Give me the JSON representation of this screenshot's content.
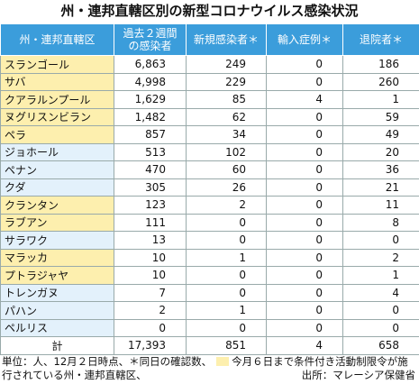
{
  "title": "州・連邦直轄区別の新型コロナウイルス感染状況",
  "table": {
    "header": [
      "州・連邦直轄区",
      [
        "過去２週間",
        "の感染者"
      ],
      "新規感染者＊",
      "輸入症例＊",
      "退院者＊"
    ],
    "rows": [
      {
        "cells": [
          "スランゴール",
          "6,863",
          "249",
          "0",
          "186"
        ],
        "restricted": true
      },
      {
        "cells": [
          "サバ",
          "4,998",
          "229",
          "0",
          "260"
        ],
        "restricted": true
      },
      {
        "cells": [
          "クアラルンプール",
          "1,629",
          "85",
          "4",
          "1"
        ],
        "restricted": true
      },
      {
        "cells": [
          "ヌグリスンビラン",
          "1,482",
          "62",
          "0",
          "59"
        ],
        "restricted": true
      },
      {
        "cells": [
          "ペラ",
          "857",
          "34",
          "0",
          "49"
        ],
        "restricted": true
      },
      {
        "cells": [
          "ジョホール",
          "513",
          "102",
          "0",
          "20"
        ],
        "restricted": false
      },
      {
        "cells": [
          "ペナン",
          "470",
          "60",
          "0",
          "36"
        ],
        "restricted": false
      },
      {
        "cells": [
          "クダ",
          "305",
          "26",
          "0",
          "21"
        ],
        "restricted": false
      },
      {
        "cells": [
          "クランタン",
          "123",
          "2",
          "0",
          "11"
        ],
        "restricted": true
      },
      {
        "cells": [
          "ラブアン",
          "111",
          "0",
          "0",
          "8"
        ],
        "restricted": true
      },
      {
        "cells": [
          "サラワク",
          "13",
          "0",
          "0",
          "0"
        ],
        "restricted": false
      },
      {
        "cells": [
          "マラッカ",
          "10",
          "1",
          "0",
          "2"
        ],
        "restricted": true
      },
      {
        "cells": [
          "プトラジャヤ",
          "10",
          "0",
          "0",
          "1"
        ],
        "restricted": true
      },
      {
        "cells": [
          "トレンガヌ",
          "7",
          "0",
          "0",
          "4"
        ],
        "restricted": false
      },
      {
        "cells": [
          "パハン",
          "2",
          "1",
          "0",
          "0"
        ],
        "restricted": false
      },
      {
        "cells": [
          "ペルリス",
          "0",
          "0",
          "0",
          "0"
        ],
        "restricted": false
      }
    ],
    "total": [
      "計",
      "17,393",
      "851",
      "4",
      "658"
    ]
  },
  "footer": {
    "notes": "単位：人、12月２日時点、＊同日の確認数、",
    "legend": "今月６日まで条件付き活動制限令が施行されている州・連邦直轄区、",
    "source": "出所：マレーシア保健省"
  }
}
